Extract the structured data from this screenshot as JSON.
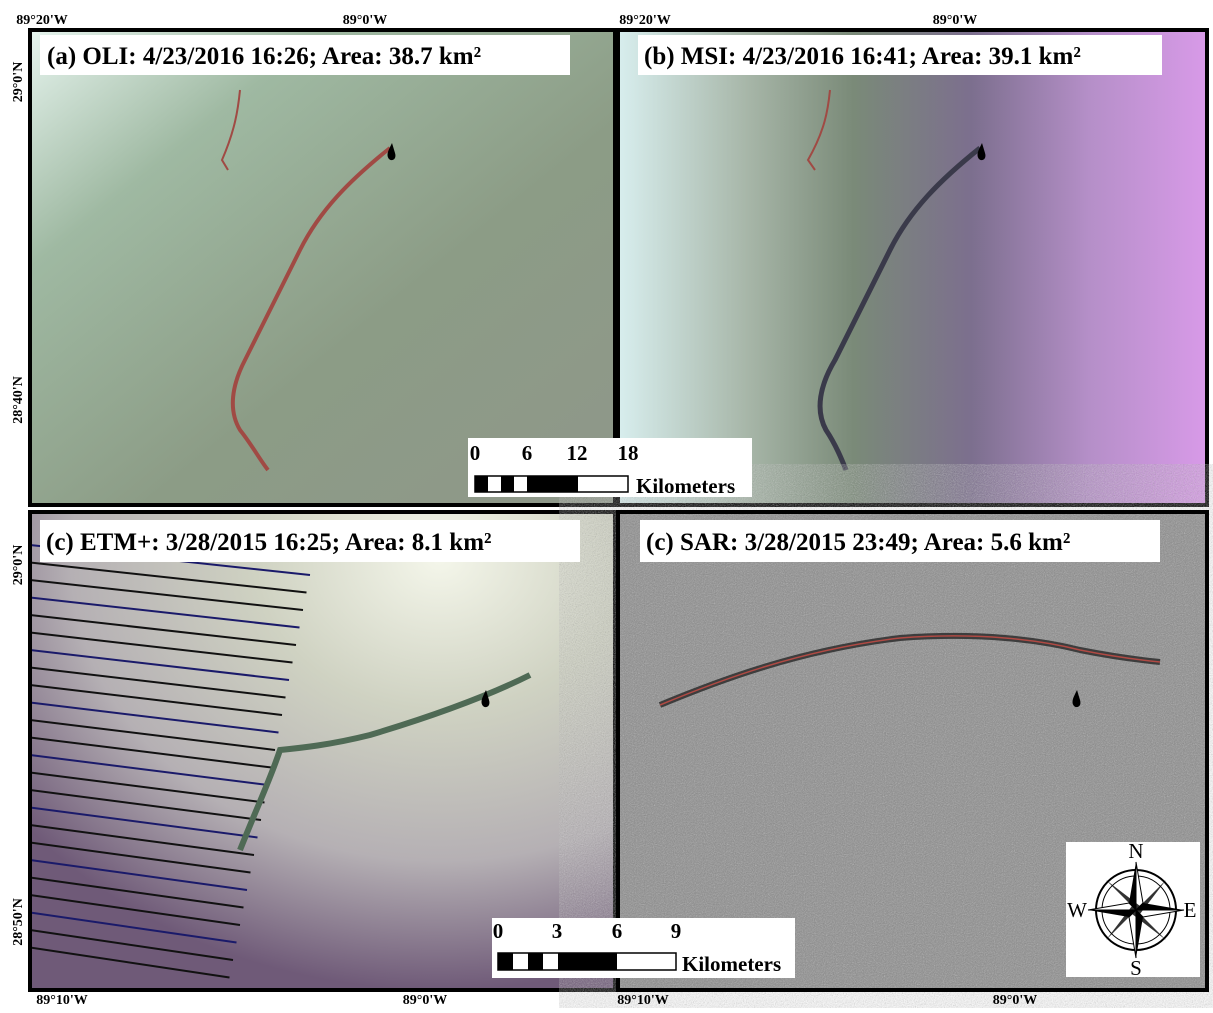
{
  "panels": [
    {
      "title": "(a) OLI: 4/23/2016 16:26; Area: 38.7 km²"
    },
    {
      "title": "(b) MSI: 4/23/2016 16:41; Area: 39.1 km²"
    },
    {
      "title": "(c) ETM+: 3/28/2015 16:25; Area: 8.1 km²"
    },
    {
      "title": "(c) SAR: 3/28/2015 23:49; Area: 5.6 km²"
    }
  ],
  "coordinates": {
    "top": [
      "89°20'W",
      "89°0'W",
      "89°20'W",
      "89°0'W"
    ],
    "left": [
      "29°0'N",
      "28°40'N",
      "29°0'N",
      "28°50'N"
    ],
    "bottom": [
      "89°10'W",
      "89°0'W",
      "89°10'W",
      "89°0'W"
    ]
  },
  "scale_bars": [
    {
      "ticks": [
        "0",
        "6",
        "12",
        "18"
      ],
      "unit": "Kilometers"
    },
    {
      "ticks": [
        "0",
        "3",
        "6",
        "9"
      ],
      "unit": "Kilometers"
    }
  ],
  "compass": {
    "n": "N",
    "e": "E",
    "s": "S",
    "w": "W"
  }
}
